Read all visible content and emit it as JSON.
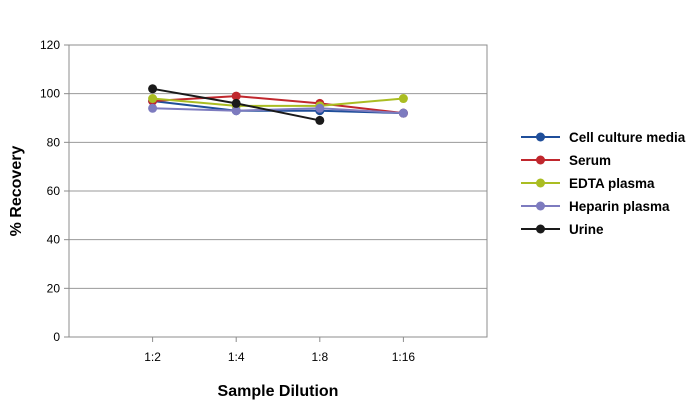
{
  "chart_data": {
    "type": "line",
    "title": "",
    "xlabel": "Sample Dilution",
    "ylabel": "% Recovery",
    "categories": [
      "1:2",
      "1:4",
      "1:8",
      "1:16"
    ],
    "ylim": [
      0,
      120
    ],
    "yticks": [
      0,
      20,
      40,
      60,
      80,
      100,
      120
    ],
    "grid": "horizontal",
    "legend_position": "right",
    "series": [
      {
        "name": "Cell culture media",
        "color": "#1f4e9a",
        "values": [
          97,
          93,
          93,
          92
        ]
      },
      {
        "name": "Serum",
        "color": "#c0272d",
        "values": [
          97,
          99,
          96,
          92
        ]
      },
      {
        "name": "EDTA plasma",
        "color": "#aabd22",
        "values": [
          98,
          95,
          95,
          98
        ]
      },
      {
        "name": "Heparin plasma",
        "color": "#7d7bbf",
        "values": [
          94,
          93,
          94,
          92
        ]
      },
      {
        "name": "Urine",
        "color": "#1a1a1a",
        "values": [
          102,
          96,
          89,
          null
        ]
      }
    ]
  }
}
